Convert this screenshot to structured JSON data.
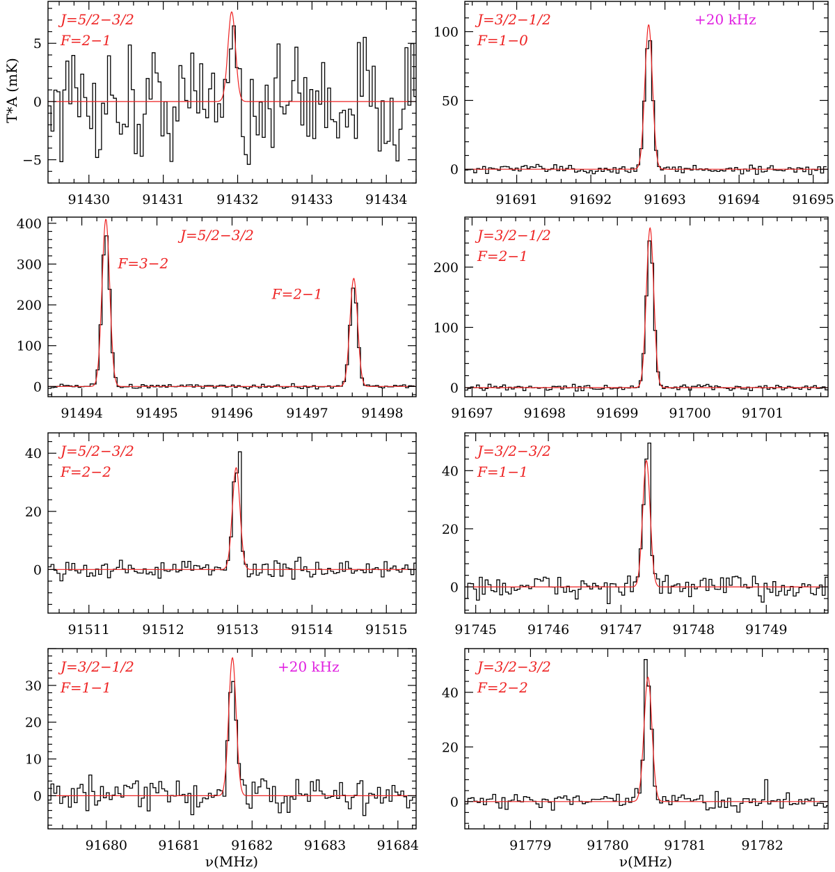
{
  "figure": {
    "ylabel": "T*A (mK)",
    "xlabel": "ν(MHz)",
    "colors": {
      "data": "#000000",
      "fit": "#ee2222",
      "label": "#ee2222",
      "note": "#e020e0"
    }
  },
  "chart_data": [
    {
      "type": "line",
      "xlim": [
        91429.45,
        91434.4
      ],
      "ylim": [
        -7,
        8.6
      ],
      "xticks": [
        91430,
        91431,
        91432,
        91433,
        91434
      ],
      "yticks": [
        -5,
        0,
        5
      ],
      "labels": [
        "J=5/2−3/2",
        "F=2−1"
      ],
      "lines": [
        {
          "center": 91431.92,
          "peak": 7.7,
          "fwhm": 0.12
        }
      ],
      "noise": 2.5,
      "bumps": [
        {
          "x": 91431.95,
          "y": 6.5
        },
        {
          "x": 91432.15,
          "y": -5.4
        },
        {
          "x": 91432.25,
          "y": -5.6
        },
        {
          "x": 91430.7,
          "y": -4.7
        },
        {
          "x": 91434.15,
          "y": -5.1
        }
      ]
    },
    {
      "type": "line",
      "xlim": [
        91690.3,
        91695.2
      ],
      "ylim": [
        -10,
        122
      ],
      "xticks": [
        91691,
        91692,
        91693,
        91694,
        91695
      ],
      "yticks": [
        0,
        50,
        100
      ],
      "labels": [
        "J=3/2−1/2",
        "F=1−0"
      ],
      "note": "+20 kHz",
      "lines": [
        {
          "center": 91692.78,
          "peak": 105,
          "fwhm": 0.12
        }
      ],
      "noise": 1.8,
      "bumps": []
    },
    {
      "type": "line",
      "xlim": [
        91493.55,
        91498.45
      ],
      "ylim": [
        -25,
        415
      ],
      "xticks": [
        91494,
        91495,
        91496,
        91497,
        91498
      ],
      "yticks": [
        0,
        100,
        200,
        300,
        400
      ],
      "labels": [
        "J=5/2−3/2"
      ],
      "line_labels": [
        {
          "text": "F=3−2",
          "x": 91494.48,
          "y": 290
        },
        {
          "text": "F=2−1",
          "x": 91496.53,
          "y": 215
        }
      ],
      "lines": [
        {
          "center": 91494.32,
          "peak": 410,
          "fwhm": 0.12
        },
        {
          "center": 91497.62,
          "peak": 265,
          "fwhm": 0.12
        }
      ],
      "noise": 2.5,
      "bumps": []
    },
    {
      "type": "line",
      "xlim": [
        91696.9,
        91701.9
      ],
      "ylim": [
        -15,
        283
      ],
      "xticks": [
        91697,
        91698,
        91699,
        91700,
        91701
      ],
      "yticks": [
        0,
        100,
        200
      ],
      "labels": [
        "J=3/2−1/2",
        "F=2−1"
      ],
      "lines": [
        {
          "center": 91699.45,
          "peak": 265,
          "fwhm": 0.12
        }
      ],
      "noise": 2.5,
      "bumps": []
    },
    {
      "type": "line",
      "xlim": [
        91510.45,
        91515.4
      ],
      "ylim": [
        -15,
        47
      ],
      "xticks": [
        91511,
        91512,
        91513,
        91514,
        91515
      ],
      "yticks": [
        0,
        20,
        40
      ],
      "labels": [
        "J=5/2−3/2",
        "F=2−2"
      ],
      "lines": [
        {
          "center": 91512.98,
          "peak": 35,
          "fwhm": 0.12
        }
      ],
      "noise": 1.6,
      "bumps": [
        {
          "x": 91513.02,
          "y": 40.5
        }
      ]
    },
    {
      "type": "line",
      "xlim": [
        91744.85,
        91749.85
      ],
      "ylim": [
        -9,
        53
      ],
      "xticks": [
        91745,
        91746,
        91747,
        91748,
        91749
      ],
      "yticks": [
        0,
        20,
        40
      ],
      "labels": [
        "J=3/2−3/2",
        "F=1−1"
      ],
      "lines": [
        {
          "center": 91747.35,
          "peak": 43.5,
          "fwhm": 0.12
        }
      ],
      "noise": 2.0,
      "bumps": [
        {
          "x": 91747.4,
          "y": 49.5
        }
      ]
    },
    {
      "type": "line",
      "xlim": [
        91679.2,
        91684.25
      ],
      "ylim": [
        -9,
        40
      ],
      "xticks": [
        91680,
        91681,
        91682,
        91683,
        91684
      ],
      "yticks": [
        0,
        10,
        20,
        30
      ],
      "labels": [
        "J=3/2−1/2",
        "F=1−1"
      ],
      "note": "+20 kHz",
      "lines": [
        {
          "center": 91681.73,
          "peak": 37.5,
          "fwhm": 0.12
        }
      ],
      "noise": 2.3,
      "bumps": []
    },
    {
      "type": "line",
      "xlim": [
        91778.15,
        91782.85
      ],
      "ylim": [
        -10,
        56
      ],
      "xticks": [
        91779,
        91780,
        91781,
        91782
      ],
      "yticks": [
        0,
        20,
        40
      ],
      "labels": [
        "J=3/2−3/2",
        "F=2−2"
      ],
      "lines": [
        {
          "center": 91780.52,
          "peak": 45.5,
          "fwhm": 0.12
        }
      ],
      "noise": 1.6,
      "bumps": [
        {
          "x": 91780.5,
          "y": 52
        },
        {
          "x": 91782.05,
          "y": 8
        }
      ]
    }
  ]
}
